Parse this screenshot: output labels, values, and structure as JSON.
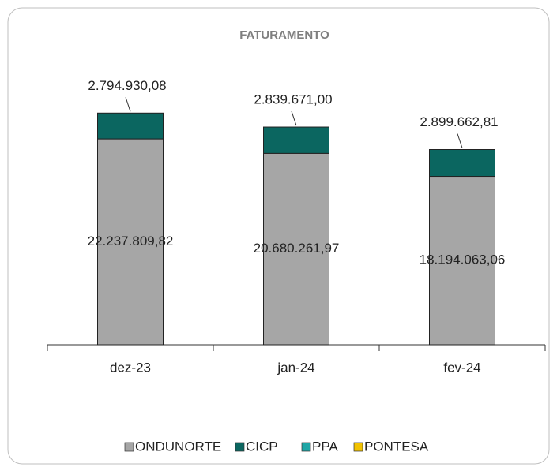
{
  "chart_data": {
    "type": "stacked_bar",
    "title": "FATURAMENTO",
    "categories": [
      "dez-23",
      "jan-24",
      "fev-24"
    ],
    "series": [
      {
        "name": "ONDUNORTE",
        "color": "#a6a6a6",
        "values": [
          22237809.82,
          20680261.97,
          18194063.06
        ],
        "value_labels": [
          "22.237.809,82",
          "20.680.261,97",
          "18.194.063,06"
        ]
      },
      {
        "name": "CICP",
        "color": "#0b6660",
        "values": [
          2794930.08,
          2839671.0,
          2899662.81
        ],
        "value_labels": [
          "2.794.930,08",
          "2.839.671,00",
          "2.899.662,81"
        ]
      },
      {
        "name": "PPA",
        "color": "#1fa6a6",
        "values": [
          null,
          null,
          null
        ]
      },
      {
        "name": "PONTESA",
        "color": "#f2c200",
        "values": [
          null,
          null,
          null
        ]
      }
    ],
    "ylim": [
      0,
      30000000
    ],
    "legend": "bottom"
  }
}
